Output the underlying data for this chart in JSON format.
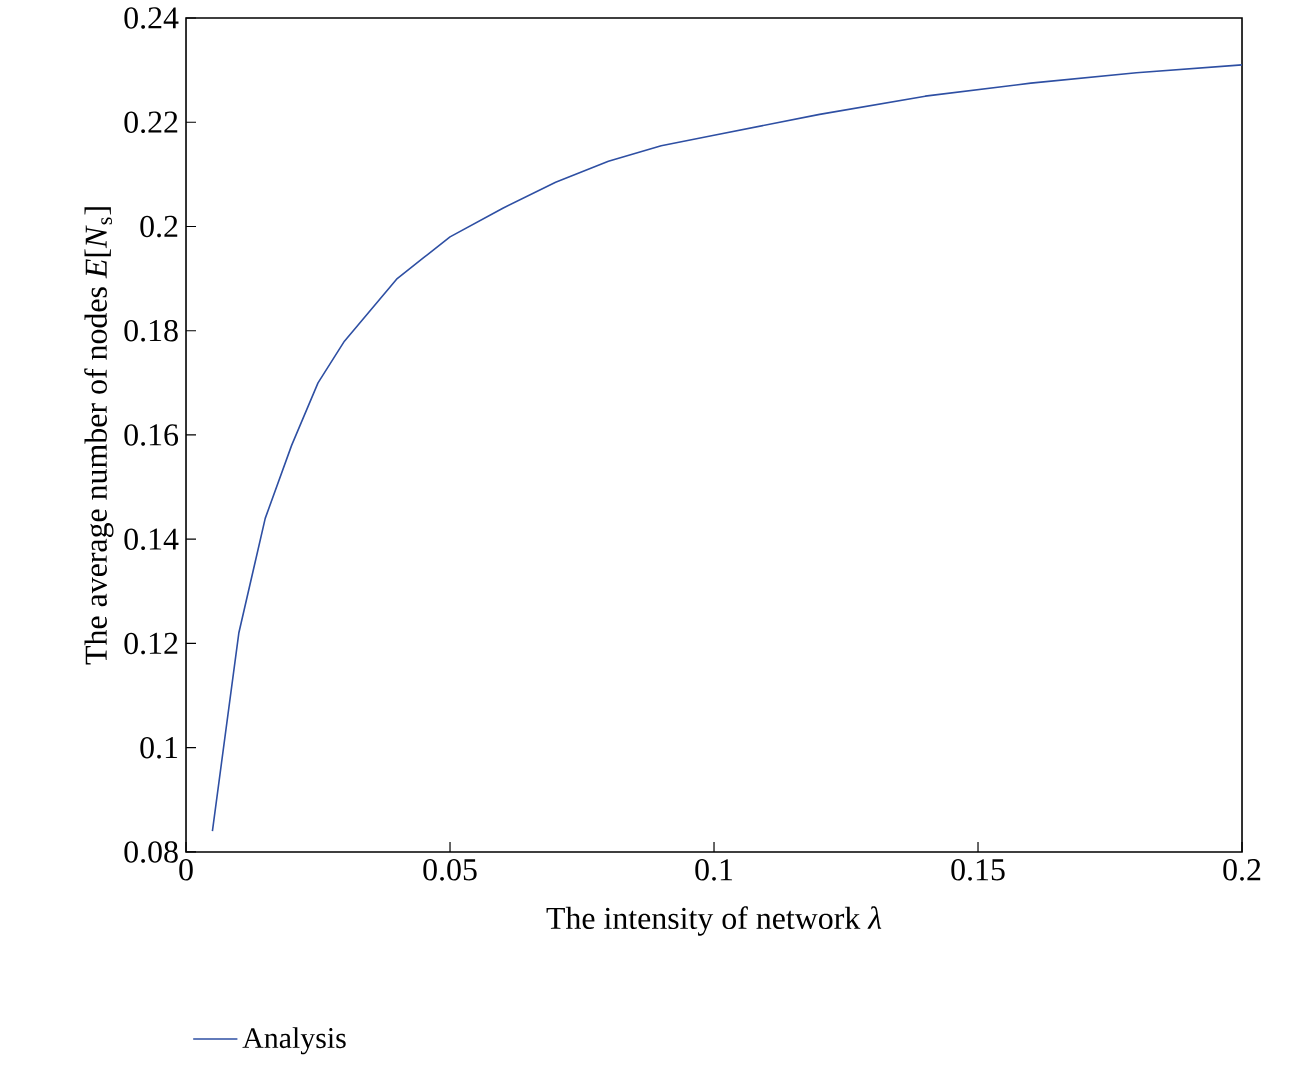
{
  "chart_data": {
    "type": "line",
    "xlabel": "The intensity of network *λ*",
    "ylabel": "The average number of nodes *E*[*N*$_{s}$]",
    "x": [
      0.005,
      0.01,
      0.015,
      0.02,
      0.025,
      0.03,
      0.035,
      0.04,
      0.045,
      0.05,
      0.06,
      0.07,
      0.08,
      0.09,
      0.1,
      0.12,
      0.14,
      0.16,
      0.18,
      0.2
    ],
    "series": [
      {
        "name": "Analysis",
        "color": "#2e4fa3",
        "values": [
          0.084,
          0.122,
          0.144,
          0.158,
          0.17,
          0.178,
          0.184,
          0.19,
          0.194,
          0.198,
          0.2035,
          0.2085,
          0.2125,
          0.2155,
          0.2175,
          0.2215,
          0.225,
          0.2275,
          0.2295,
          0.231
        ]
      }
    ],
    "xlim": [
      0,
      0.2
    ],
    "ylim": [
      0.08,
      0.24
    ],
    "xticks": [
      0,
      0.05,
      0.1,
      0.15,
      0.2
    ],
    "yticks": [
      0.08,
      0.1,
      0.12,
      0.14,
      0.16,
      0.18,
      0.2,
      0.22,
      0.24
    ],
    "legend": "bottom left",
    "grid": false,
    "line_style": "solid",
    "marker": "none"
  }
}
